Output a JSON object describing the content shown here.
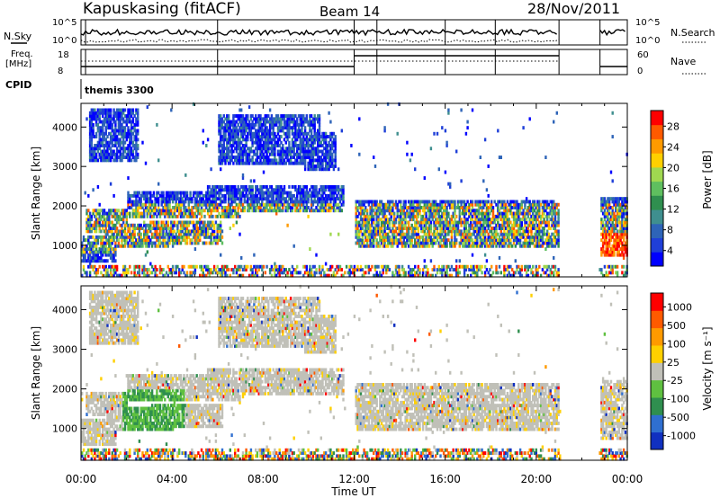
{
  "header": {
    "station": "Kapuskasing (fitACF)",
    "beam": "Beam 14",
    "date": "28/Nov/2011"
  },
  "top_panels": {
    "nsky_label": "N.Sky",
    "nsky_ticks": [
      "10^5",
      "10^0"
    ],
    "nsearch_ticks": [
      "10^5",
      "10^0"
    ],
    "nsearch_label": "N.Search",
    "freq_label_1": "Freq.",
    "freq_label_2": "[MHz]",
    "freq_ticks": [
      "18",
      "8"
    ],
    "nave_ticks": [
      "60",
      "0"
    ],
    "nave_label": "Nave",
    "cpid_label": "CPID",
    "cpid_value": "themis 3300"
  },
  "chart_data": [
    {
      "type": "heatmap",
      "ylabel": "Slant Range [km]",
      "xlabel": "Time UT",
      "x_ticks": [
        "00:00",
        "04:00",
        "08:00",
        "12:00",
        "16:00",
        "20:00",
        "00:00"
      ],
      "y_ticks": [
        1000,
        2000,
        3000,
        4000
      ],
      "ylim": [
        200,
        4600
      ],
      "colorbar": {
        "label": "Power [dB]",
        "ticks": [
          "28",
          "24",
          "20",
          "16",
          "12",
          "8",
          "4"
        ],
        "colors": [
          "#0000ff",
          "#1f3fd8",
          "#2e64b8",
          "#3f8f8f",
          "#2f8f4f",
          "#5fbf5f",
          "#a0d850",
          "#ffd000",
          "#ff9a00",
          "#ff5a00",
          "#ff0000"
        ]
      }
    },
    {
      "type": "heatmap",
      "ylabel": "Slant Range [km]",
      "xlabel": "Time UT",
      "x_ticks": [
        "00:00",
        "04:00",
        "08:00",
        "12:00",
        "16:00",
        "20:00",
        "00:00"
      ],
      "y_ticks": [
        1000,
        2000,
        3000,
        4000
      ],
      "ylim": [
        200,
        4600
      ],
      "colorbar": {
        "label": "Velocity [m s⁻¹]",
        "ticks": [
          "1000",
          "500",
          "100",
          "25",
          "-25",
          "-100",
          "-500",
          "-1000"
        ],
        "colors": [
          "#1030c0",
          "#2f6fd0",
          "#2f8f4f",
          "#5fc040",
          "#c0c0b8",
          "#ffd000",
          "#ff9a00",
          "#ff5a00",
          "#ff0000"
        ]
      }
    }
  ]
}
